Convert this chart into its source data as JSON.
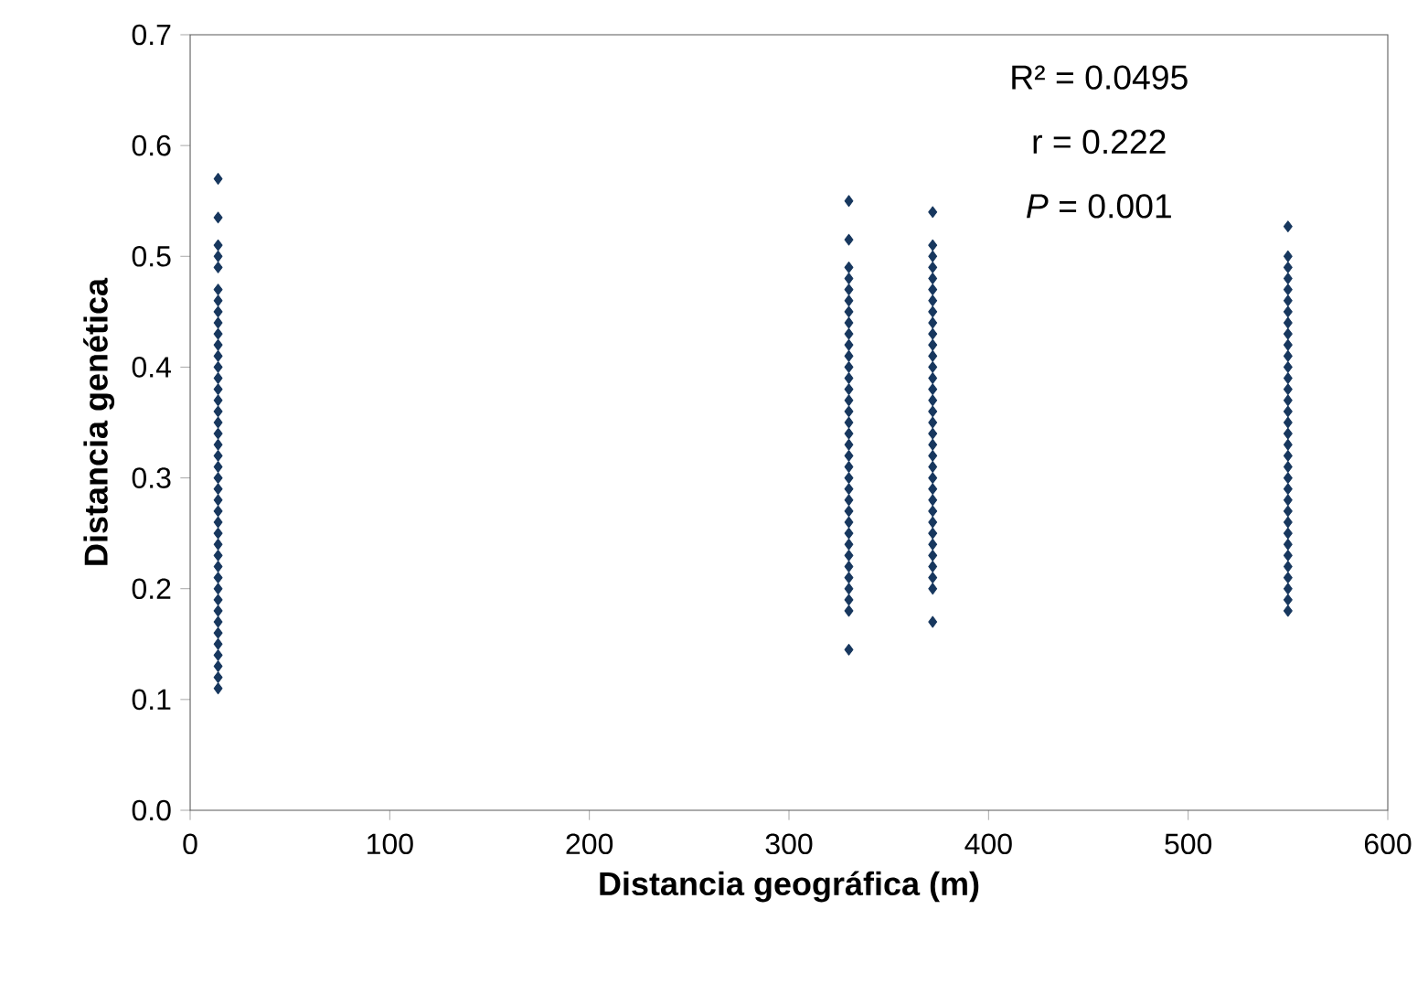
{
  "chart_data": {
    "type": "scatter",
    "xlabel": "Distancia geográfica (m)",
    "ylabel": "Distancia genética",
    "annotations": [
      "R² = 0.0495",
      "r = 0.222",
      "*P* = 0.001"
    ],
    "series": [
      {
        "color": "#17375e",
        "x": [
          14,
          14,
          14,
          14,
          14,
          14,
          14,
          14,
          14,
          14,
          14,
          14,
          14,
          14,
          14,
          14,
          14,
          14,
          14,
          14,
          14,
          14,
          14,
          14,
          14,
          14,
          14,
          14,
          14,
          14,
          14,
          14,
          14,
          14,
          14,
          14,
          14,
          14,
          14,
          14,
          14,
          14,
          330,
          330,
          330,
          330,
          330,
          330,
          330,
          330,
          330,
          330,
          330,
          330,
          330,
          330,
          330,
          330,
          330,
          330,
          330,
          330,
          330,
          330,
          330,
          330,
          330,
          330,
          330,
          330,
          330,
          330,
          330,
          330,
          330,
          330,
          330,
          372,
          372,
          372,
          372,
          372,
          372,
          372,
          372,
          372,
          372,
          372,
          372,
          372,
          372,
          372,
          372,
          372,
          372,
          372,
          372,
          372,
          372,
          372,
          372,
          372,
          372,
          372,
          372,
          372,
          372,
          372,
          372,
          372,
          372,
          550,
          550,
          550,
          550,
          550,
          550,
          550,
          550,
          550,
          550,
          550,
          550,
          550,
          550,
          550,
          550,
          550,
          550,
          550,
          550,
          550,
          550,
          550,
          550,
          550,
          550,
          550,
          550,
          550,
          550,
          550,
          550,
          550,
          550
        ],
        "values": [
          0.11,
          0.12,
          0.13,
          0.14,
          0.15,
          0.16,
          0.17,
          0.18,
          0.19,
          0.2,
          0.21,
          0.22,
          0.23,
          0.24,
          0.25,
          0.26,
          0.27,
          0.28,
          0.29,
          0.3,
          0.31,
          0.32,
          0.33,
          0.34,
          0.35,
          0.36,
          0.37,
          0.38,
          0.39,
          0.4,
          0.41,
          0.42,
          0.43,
          0.44,
          0.45,
          0.46,
          0.47,
          0.49,
          0.5,
          0.51,
          0.535,
          0.57,
          0.145,
          0.18,
          0.19,
          0.2,
          0.21,
          0.22,
          0.23,
          0.24,
          0.25,
          0.26,
          0.27,
          0.28,
          0.29,
          0.3,
          0.31,
          0.32,
          0.33,
          0.34,
          0.35,
          0.36,
          0.37,
          0.38,
          0.39,
          0.4,
          0.41,
          0.42,
          0.43,
          0.44,
          0.45,
          0.46,
          0.47,
          0.48,
          0.49,
          0.515,
          0.55,
          0.17,
          0.2,
          0.21,
          0.22,
          0.23,
          0.24,
          0.25,
          0.26,
          0.27,
          0.28,
          0.29,
          0.3,
          0.31,
          0.32,
          0.33,
          0.34,
          0.35,
          0.36,
          0.37,
          0.38,
          0.39,
          0.4,
          0.41,
          0.42,
          0.43,
          0.44,
          0.45,
          0.46,
          0.47,
          0.48,
          0.49,
          0.5,
          0.51,
          0.54,
          0.18,
          0.19,
          0.2,
          0.21,
          0.22,
          0.23,
          0.24,
          0.25,
          0.26,
          0.27,
          0.28,
          0.29,
          0.3,
          0.31,
          0.32,
          0.33,
          0.34,
          0.35,
          0.36,
          0.37,
          0.38,
          0.39,
          0.4,
          0.41,
          0.42,
          0.43,
          0.44,
          0.45,
          0.46,
          0.47,
          0.48,
          0.49,
          0.5,
          0.527
        ]
      }
    ],
    "marker": "diamond",
    "xlim": [
      0,
      600
    ],
    "xticks": [
      0,
      100,
      200,
      300,
      400,
      500,
      600
    ],
    "ylim": [
      0,
      0.7
    ],
    "yticks": [
      {
        "value": 0,
        "label": "0.0"
      },
      0.1,
      0.2,
      0.3,
      0.4,
      0.5,
      0.6,
      0.7
    ]
  }
}
